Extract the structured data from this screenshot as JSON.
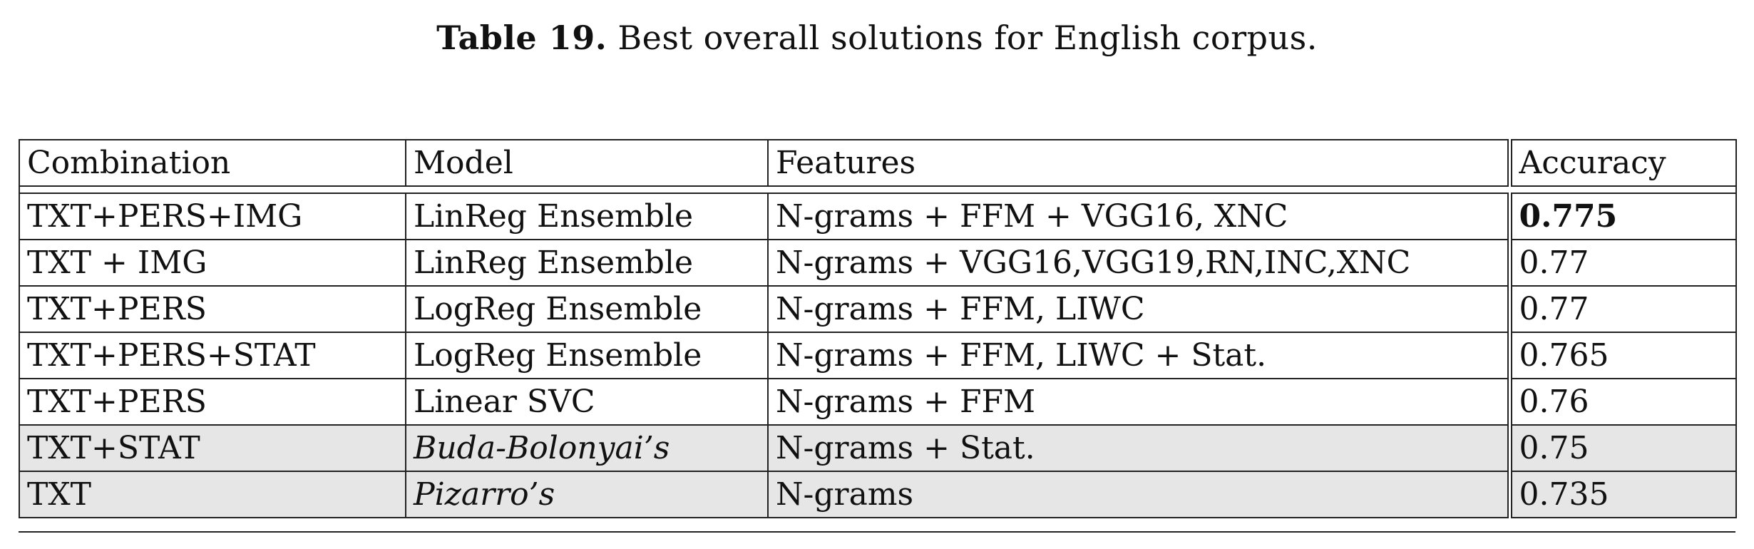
{
  "caption": {
    "label": "Table 19.",
    "text": "Best overall solutions for English corpus."
  },
  "table": {
    "headers": [
      "Combination",
      "Model",
      "Features",
      "Accuracy"
    ],
    "rows": [
      {
        "combination": "TXT+PERS+IMG",
        "model": "LinReg Ensemble",
        "features": "N-grams + FFM + VGG16, XNC",
        "accuracy": "0.775"
      },
      {
        "combination": "TXT + IMG",
        "model": "LinReg Ensemble",
        "features": "N-grams + VGG16,VGG19,RN,INC,XNC",
        "accuracy": "0.77"
      },
      {
        "combination": "TXT+PERS",
        "model": "LogReg Ensemble",
        "features": "N-grams + FFM, LIWC",
        "accuracy": "0.77"
      },
      {
        "combination": "TXT+PERS+STAT",
        "model": "LogReg Ensemble",
        "features": "N-grams + FFM, LIWC + Stat.",
        "accuracy": "0.765"
      },
      {
        "combination": "TXT+PERS",
        "model": "Linear SVC",
        "features": "N-grams + FFM",
        "accuracy": "0.76"
      },
      {
        "combination": "TXT+STAT",
        "model": "Buda-Bolonyai’s",
        "features": "N-grams + Stat.",
        "accuracy": "0.75"
      },
      {
        "combination": "TXT",
        "model": "Pizarro’s",
        "features": "N-grams",
        "accuracy": "0.735"
      }
    ]
  }
}
